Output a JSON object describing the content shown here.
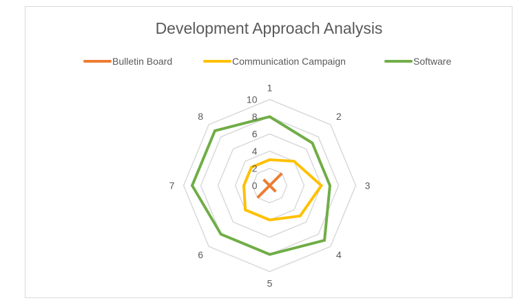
{
  "chart_data": {
    "type": "radar",
    "title": "Development Approach Analysis",
    "categories": [
      "1",
      "2",
      "3",
      "4",
      "5",
      "6",
      "7",
      "8"
    ],
    "series": [
      {
        "name": "Bulletin Board",
        "color": "#ED7D31",
        "values": [
          0,
          2,
          0,
          1,
          0,
          2,
          0,
          1
        ]
      },
      {
        "name": "Communication Campaign",
        "color": "#FFC000",
        "values": [
          3,
          4,
          6,
          5,
          4,
          4,
          3,
          3
        ]
      },
      {
        "name": "Software",
        "color": "#70AD47",
        "values": [
          8,
          7,
          7,
          9,
          8,
          8,
          9,
          9
        ]
      }
    ],
    "radial_axis": {
      "min": 0,
      "max": 10,
      "step": 2,
      "tick_labels": [
        "0",
        "2",
        "4",
        "6",
        "8",
        "10"
      ]
    },
    "grid": true,
    "grid_color": "#D9D9D9",
    "legend_position": "top"
  },
  "legend": [
    {
      "label": "Bulletin Board",
      "color": "#ED7D31"
    },
    {
      "label": "Communication Campaign",
      "color": "#FFC000"
    },
    {
      "label": "Software",
      "color": "#70AD47"
    }
  ]
}
